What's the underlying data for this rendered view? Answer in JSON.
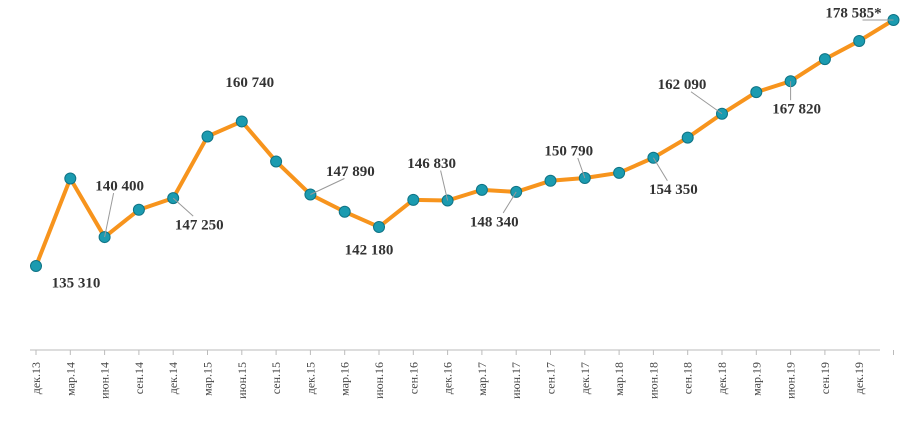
{
  "chart_data": {
    "type": "line",
    "categories": [
      "дек.13",
      "мар.14",
      "июн.14",
      "сен.14",
      "дек.14",
      "мар.15",
      "июн.15",
      "сен.15",
      "дек.15",
      "мар.16",
      "июн.16",
      "сен.16",
      "дек.16",
      "мар.17",
      "июн.17",
      "сен.17",
      "дек.17",
      "мар.18",
      "июн.18",
      "сен.18",
      "дек.18",
      "мар.19",
      "июн.19",
      "сен.19",
      "дек.19",
      null
    ],
    "values": [
      135310,
      150700,
      140400,
      145200,
      147250,
      158100,
      160740,
      153700,
      147890,
      144850,
      142180,
      146950,
      146830,
      148700,
      148340,
      150300,
      150790,
      151700,
      154350,
      157900,
      162090,
      165900,
      167820,
      171700,
      174900,
      178585
    ],
    "value_labels": [
      "135 310",
      null,
      "140 400",
      null,
      "147 250",
      null,
      "160 740",
      null,
      "147 890",
      null,
      "142 180",
      null,
      "146 830",
      null,
      "148 340",
      null,
      "150 790",
      null,
      "154 350",
      null,
      "162 090",
      null,
      "167 820",
      null,
      null,
      "178 585*"
    ],
    "color": "#f7941d",
    "marker_color": "#1b9bb0"
  }
}
